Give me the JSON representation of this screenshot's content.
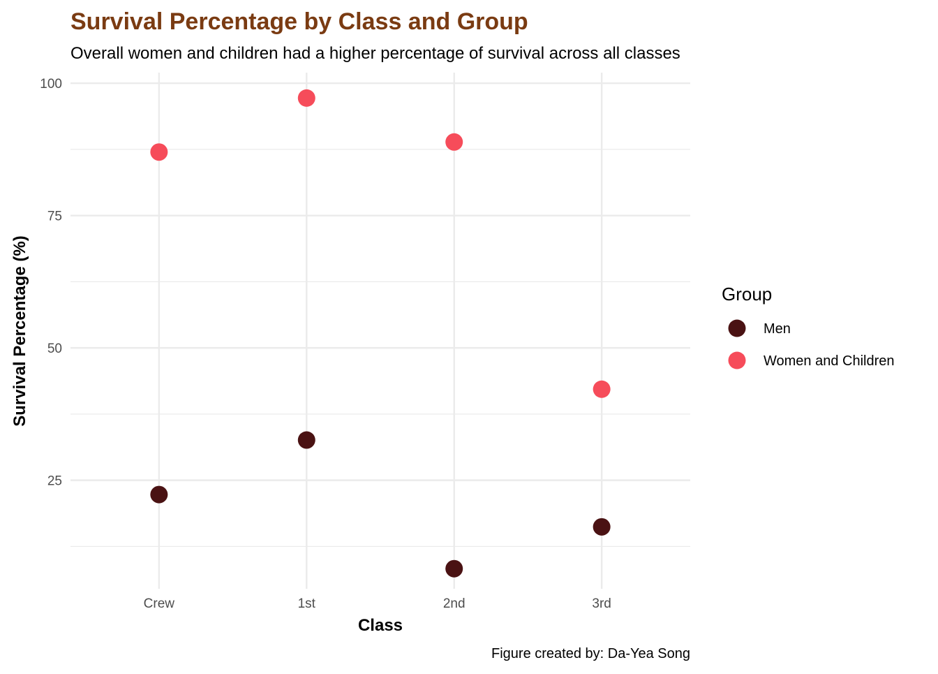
{
  "colors": {
    "title": "#7A3B12",
    "men": "#4A1213",
    "women_children": "#F64C5A",
    "grid": "#EBEBEB",
    "tick_text": "#4D4D4D"
  },
  "chart_data": {
    "type": "scatter",
    "title": "Survival Percentage by Class and Group",
    "subtitle": "Overall women and children had a higher percentage of survival across all classes",
    "xlabel": "Class",
    "ylabel": "Survival Percentage (%)",
    "caption": "Figure created by: Da-Yea Song",
    "categories": [
      "Crew",
      "1st",
      "2nd",
      "3rd"
    ],
    "ylim": [
      4.5,
      102
    ],
    "yticks": [
      25,
      50,
      75,
      100
    ],
    "grid": true,
    "legend": {
      "title": "Group",
      "placement": "right"
    },
    "series": [
      {
        "name": "Men",
        "color": "#4A1213",
        "values": [
          22.3,
          32.6,
          8.3,
          16.2
        ]
      },
      {
        "name": "Women and Children",
        "color": "#F64C5A",
        "values": [
          87.0,
          97.2,
          88.9,
          42.2
        ]
      }
    ]
  }
}
